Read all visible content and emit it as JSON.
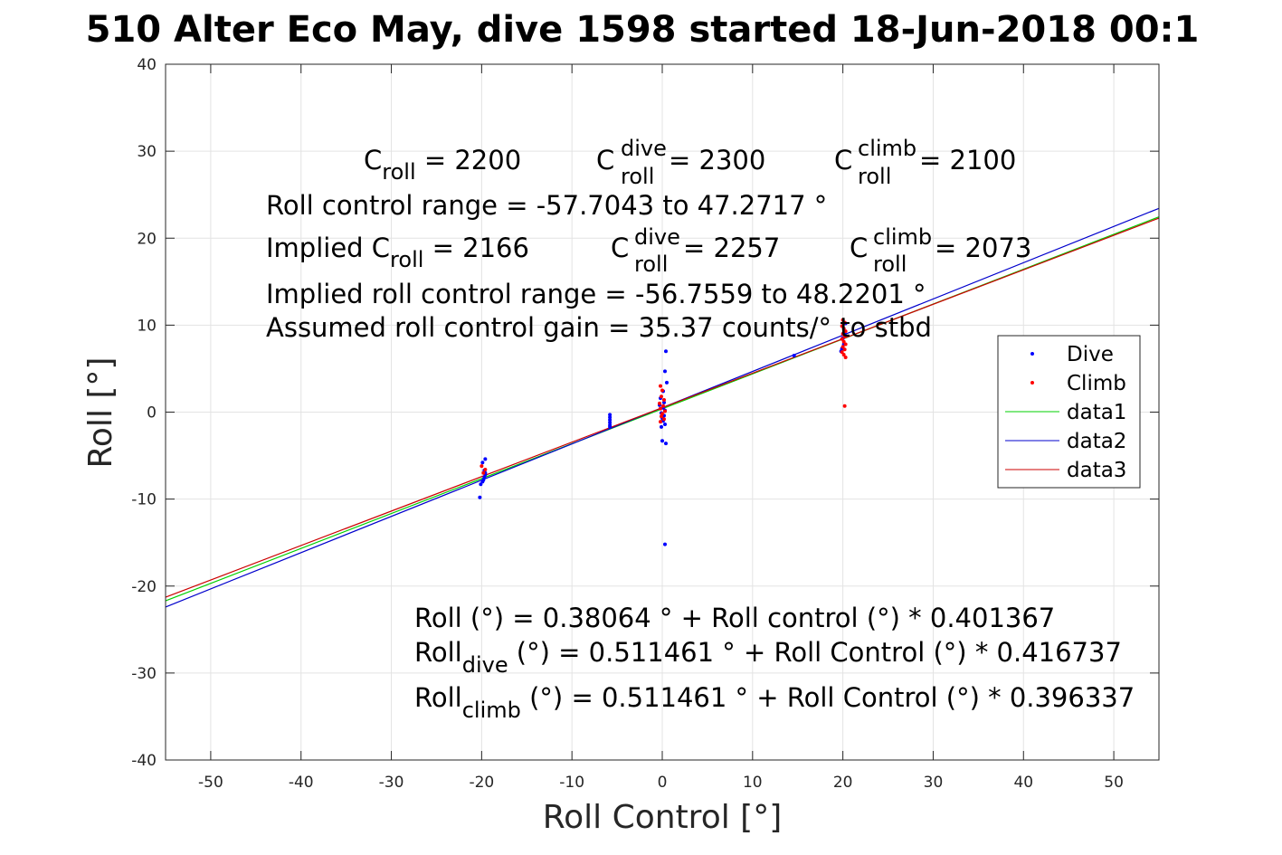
{
  "title": "510 Alter Eco May, dive 1598 started 18-Jun-2018 00:1",
  "chart_data": {
    "type": "scatter",
    "xlabel": "Roll Control [°]",
    "ylabel": "Roll [°]",
    "xlim": [
      -55,
      55
    ],
    "ylim": [
      -40,
      40
    ],
    "xticks": [
      -50,
      -40,
      -30,
      -20,
      -10,
      0,
      10,
      20,
      30,
      40,
      50
    ],
    "yticks": [
      -40,
      -30,
      -20,
      -10,
      0,
      10,
      20,
      30,
      40
    ],
    "grid": true,
    "legend_position": "right",
    "series": [
      {
        "name": "Dive",
        "kind": "points",
        "color": "#0000ff",
        "points": [
          [
            -20.2,
            -9.8
          ],
          [
            -20.1,
            -8.3
          ],
          [
            -19.9,
            -8.0
          ],
          [
            -19.8,
            -7.8
          ],
          [
            -19.7,
            -7.5
          ],
          [
            -19.6,
            -7.2
          ],
          [
            -19.6,
            -7.0
          ],
          [
            -19.7,
            -6.7
          ],
          [
            -19.9,
            -5.8
          ],
          [
            -19.6,
            -5.4
          ],
          [
            -5.8,
            -0.3
          ],
          [
            -5.8,
            -0.6
          ],
          [
            -5.8,
            -0.9
          ],
          [
            -5.8,
            -1.2
          ],
          [
            -5.8,
            -1.5
          ],
          [
            -5.8,
            -1.7
          ],
          [
            0.4,
            7.0
          ],
          [
            0.3,
            4.7
          ],
          [
            0.5,
            3.4
          ],
          [
            0.1,
            2.4
          ],
          [
            -0.2,
            1.6
          ],
          [
            0.2,
            1.1
          ],
          [
            -0.3,
            0.8
          ],
          [
            0.1,
            0.5
          ],
          [
            0.3,
            0.2
          ],
          [
            -0.1,
            -0.1
          ],
          [
            0.2,
            -0.4
          ],
          [
            0.0,
            -0.7
          ],
          [
            0.1,
            -1.0
          ],
          [
            0.3,
            -1.4
          ],
          [
            -0.1,
            -1.7
          ],
          [
            0.0,
            -3.3
          ],
          [
            0.4,
            -3.6
          ],
          [
            0.3,
            -15.2
          ],
          [
            14.6,
            6.5
          ],
          [
            19.8,
            7.0
          ],
          [
            19.9,
            7.3
          ],
          [
            20.1,
            7.8
          ],
          [
            20.0,
            8.5
          ],
          [
            20.2,
            9.0
          ],
          [
            20.1,
            9.6
          ],
          [
            20.3,
            10.2
          ]
        ]
      },
      {
        "name": "Climb",
        "kind": "points",
        "color": "#ff0000",
        "points": [
          [
            -20.0,
            -6.2
          ],
          [
            -19.6,
            -6.6
          ],
          [
            -19.8,
            -7.0
          ],
          [
            -0.2,
            3.0
          ],
          [
            0.0,
            2.5
          ],
          [
            -0.1,
            1.8
          ],
          [
            0.2,
            1.4
          ],
          [
            -0.3,
            1.0
          ],
          [
            0.1,
            0.7
          ],
          [
            -0.2,
            0.4
          ],
          [
            0.3,
            0.1
          ],
          [
            0.0,
            -0.2
          ],
          [
            -0.1,
            -0.5
          ],
          [
            0.2,
            -0.8
          ],
          [
            -0.2,
            -1.1
          ],
          [
            20.0,
            10.6
          ],
          [
            20.2,
            10.3
          ],
          [
            19.9,
            9.9
          ],
          [
            20.1,
            9.6
          ],
          [
            20.3,
            9.3
          ],
          [
            20.0,
            9.0
          ],
          [
            20.2,
            8.7
          ],
          [
            19.9,
            8.4
          ],
          [
            20.1,
            8.1
          ],
          [
            20.3,
            7.8
          ],
          [
            20.0,
            7.5
          ],
          [
            20.2,
            7.2
          ],
          [
            19.9,
            6.9
          ],
          [
            20.1,
            6.6
          ],
          [
            20.3,
            6.3
          ],
          [
            20.2,
            0.7
          ]
        ]
      },
      {
        "name": "data1",
        "kind": "line",
        "color": "#00d000",
        "intercept": 0.38064,
        "slope": 0.401367
      },
      {
        "name": "data2",
        "kind": "line",
        "color": "#0000cc",
        "intercept": 0.511461,
        "slope": 0.416737
      },
      {
        "name": "data3",
        "kind": "line",
        "color": "#cc0000",
        "intercept": 0.511461,
        "slope": 0.396337
      }
    ],
    "annotations": {
      "c_line": {
        "c_main": "C",
        "c_roll_sub": "roll",
        "c_roll_val": " = 2200",
        "c_dive_sup": "dive",
        "c_dive_sub": "roll",
        "c_dive_val": " = 2300",
        "c_climb_sup": "climb",
        "c_climb_sub": "roll",
        "c_climb_val": " = 2100"
      },
      "range_line": "Roll control range = -57.7043 to 47.2717 °",
      "implied_line": {
        "prefix": "Implied C",
        "roll_sub": "roll",
        "roll_val": " = 2166",
        "c_main": "C",
        "dive_sup": "dive",
        "dive_sub": "roll",
        "dive_val": " = 2257",
        "climb_sup": "climb",
        "climb_sub": "roll",
        "climb_val": " = 2073"
      },
      "implied_range_line": "Implied roll control range = -56.7559 to 48.2201 °",
      "gain_line": "Assumed roll control gain = 35.37 counts/° to stbd",
      "fit_line": "Roll (°) = 0.38064 ° + Roll control (°) * 0.401367",
      "fit_dive": {
        "main": "Roll",
        "sub": "dive",
        "rest": " (°) = 0.511461 ° + Roll Control (°) * 0.416737"
      },
      "fit_climb": {
        "main": "Roll",
        "sub": "climb",
        "rest": " (°) = 0.511461 ° + Roll Control (°) * 0.396337"
      }
    }
  }
}
